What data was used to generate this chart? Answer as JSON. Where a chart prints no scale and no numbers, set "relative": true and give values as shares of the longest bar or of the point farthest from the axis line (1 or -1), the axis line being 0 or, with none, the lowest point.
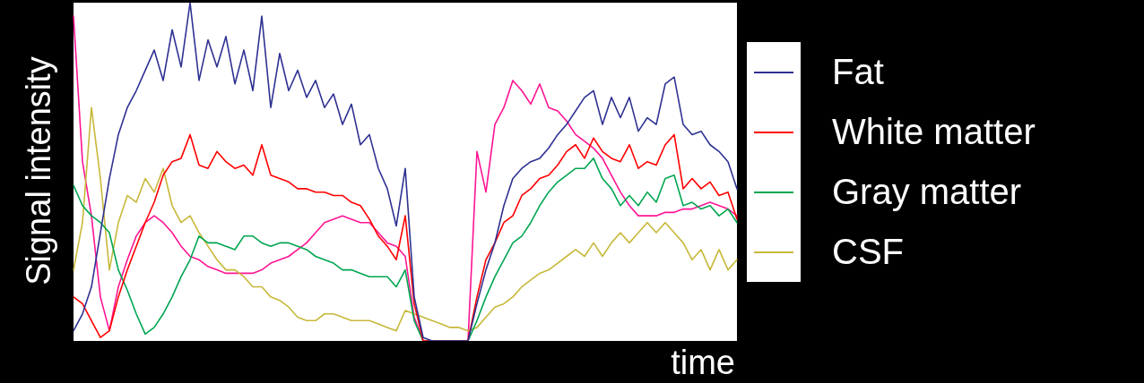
{
  "chart_data": {
    "type": "line",
    "relative": true,
    "xlabel": "time",
    "ylabel": "Signal intensity",
    "legend": "right",
    "categories": [
      null,
      null,
      null,
      null,
      null,
      null,
      null,
      null,
      null,
      null,
      null,
      null,
      null,
      null,
      null,
      null,
      null,
      null,
      null,
      null,
      null,
      null,
      null,
      null,
      null,
      null,
      null,
      null,
      null,
      null,
      null,
      null,
      null,
      null,
      null,
      null,
      null,
      null,
      null,
      null,
      null,
      null,
      null,
      null,
      null,
      null,
      null,
      null,
      null,
      null,
      null,
      null,
      null,
      null,
      null,
      null,
      null,
      null,
      null,
      null,
      null,
      null,
      null,
      null,
      null,
      null,
      null,
      null,
      null,
      null,
      null,
      null,
      null,
      null,
      null
    ],
    "series": [
      {
        "name": "Fat",
        "color": "#2e3192",
        "values": [
          0.03,
          0.08,
          0.16,
          0.32,
          0.48,
          0.61,
          0.69,
          0.74,
          0.8,
          0.86,
          0.77,
          0.92,
          0.81,
          1.0,
          0.77,
          0.89,
          0.81,
          0.9,
          0.76,
          0.86,
          0.74,
          0.96,
          0.69,
          0.85,
          0.74,
          0.8,
          0.72,
          0.77,
          0.69,
          0.73,
          0.64,
          0.7,
          0.58,
          0.61,
          0.51,
          0.45,
          0.34,
          0.51,
          0.13,
          0.01,
          0,
          0,
          0,
          0,
          0,
          0.11,
          0.21,
          0.29,
          0.4,
          0.48,
          0.51,
          0.53,
          0.54,
          0.57,
          0.61,
          0.64,
          0.68,
          0.72,
          0.74,
          0.64,
          0.72,
          0.66,
          0.72,
          0.62,
          0.66,
          0.64,
          0.76,
          0.78,
          0.64,
          0.61,
          0.62,
          0.58,
          0.56,
          0.53,
          0.45
        ]
      },
      {
        "name": "White matter",
        "color": "#ff0000",
        "values": [
          0.13,
          0.11,
          0.06,
          0.01,
          0.03,
          0.13,
          0.21,
          0.28,
          0.35,
          0.41,
          0.49,
          0.53,
          0.54,
          0.61,
          0.52,
          0.51,
          0.56,
          0.53,
          0.51,
          0.52,
          0.49,
          0.58,
          0.49,
          0.48,
          0.47,
          0.45,
          0.45,
          0.44,
          0.44,
          0.43,
          0.43,
          0.41,
          0.4,
          0.36,
          0.31,
          0.28,
          0.24,
          0.37,
          0.11,
          0,
          0,
          0,
          0,
          0,
          0,
          0.13,
          0.24,
          0.29,
          0.35,
          0.37,
          0.43,
          0.45,
          0.48,
          0.49,
          0.52,
          0.56,
          0.58,
          0.54,
          0.6,
          0.56,
          0.54,
          0.53,
          0.58,
          0.51,
          0.53,
          0.52,
          0.58,
          0.61,
          0.45,
          0.48,
          0.45,
          0.47,
          0.43,
          0.44,
          0.36
        ]
      },
      {
        "name": "Gray matter",
        "color": "#00a651",
        "values": [
          0.46,
          0.4,
          0.37,
          0.35,
          0.32,
          0.21,
          0.15,
          0.08,
          0.02,
          0.04,
          0.08,
          0.13,
          0.19,
          0.24,
          0.31,
          0.29,
          0.29,
          0.28,
          0.27,
          0.31,
          0.31,
          0.29,
          0.28,
          0.29,
          0.29,
          0.28,
          0.27,
          0.25,
          0.24,
          0.23,
          0.21,
          0.21,
          0.2,
          0.19,
          0.19,
          0.19,
          0.16,
          0.21,
          0.06,
          0,
          0,
          0,
          0,
          0,
          0,
          0.06,
          0.13,
          0.19,
          0.24,
          0.29,
          0.31,
          0.35,
          0.4,
          0.44,
          0.47,
          0.49,
          0.51,
          0.51,
          0.54,
          0.48,
          0.45,
          0.4,
          0.43,
          0.4,
          0.44,
          0.41,
          0.48,
          0.49,
          0.4,
          0.41,
          0.39,
          0.4,
          0.37,
          0.39,
          0.35
        ]
      },
      {
        "name": "CSF",
        "color": "#c8b83a",
        "values": [
          0.21,
          0.35,
          0.69,
          0.48,
          0.21,
          0.35,
          0.43,
          0.41,
          0.48,
          0.44,
          0.51,
          0.4,
          0.35,
          0.37,
          0.32,
          0.28,
          0.24,
          0.21,
          0.21,
          0.19,
          0.16,
          0.16,
          0.13,
          0.12,
          0.1,
          0.07,
          0.06,
          0.06,
          0.08,
          0.08,
          0.07,
          0.06,
          0.06,
          0.06,
          0.05,
          0.04,
          0.03,
          0.09,
          0.08,
          0.07,
          0.06,
          0.05,
          0.04,
          0.04,
          0.03,
          0.04,
          0.07,
          0.1,
          0.11,
          0.13,
          0.16,
          0.18,
          0.2,
          0.21,
          0.23,
          0.25,
          0.27,
          0.25,
          0.29,
          0.25,
          0.29,
          0.32,
          0.29,
          0.32,
          0.35,
          0.32,
          0.35,
          0.32,
          0.29,
          0.24,
          0.27,
          0.21,
          0.27,
          0.21,
          0.24
        ]
      },
      {
        "color": "#ff1493",
        "values": [
          0.96,
          0.53,
          0.37,
          0.13,
          0.03,
          0.16,
          0.24,
          0.31,
          0.35,
          0.37,
          0.35,
          0.32,
          0.28,
          0.25,
          0.24,
          0.22,
          0.21,
          0.2,
          0.2,
          0.2,
          0.2,
          0.21,
          0.23,
          0.24,
          0.25,
          0.27,
          0.29,
          0.32,
          0.35,
          0.36,
          0.37,
          0.36,
          0.35,
          0.35,
          0.32,
          0.29,
          0.28,
          0.25,
          0.07,
          0,
          0,
          0,
          0,
          0,
          0,
          0.56,
          0.44,
          0.64,
          0.69,
          0.77,
          0.74,
          0.7,
          0.76,
          0.69,
          0.68,
          0.65,
          0.61,
          0.59,
          0.57,
          0.54,
          0.49,
          0.44,
          0.4,
          0.37,
          0.37,
          0.37,
          0.38,
          0.38,
          0.39,
          0.39,
          0.4,
          0.41,
          0.4,
          0.39,
          0.37
        ]
      }
    ]
  }
}
